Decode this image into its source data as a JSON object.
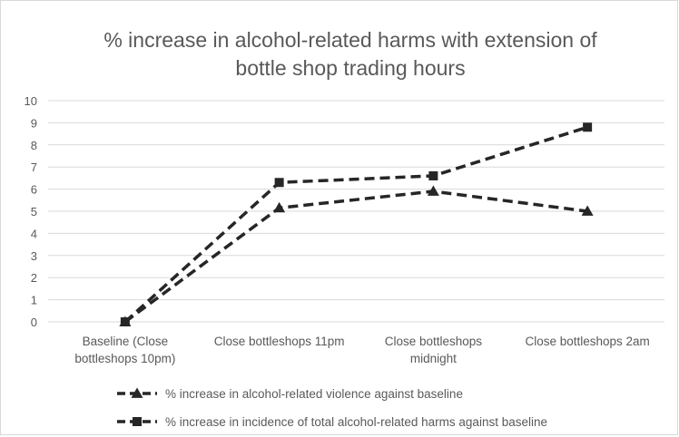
{
  "chart_data": {
    "type": "line",
    "title_lines": [
      "% increase in alcohol-related harms with extension of",
      "bottle shop trading hours"
    ],
    "categories": [
      [
        "Baseline (Close",
        "bottleshops 10pm)"
      ],
      [
        "Close bottleshops 11pm"
      ],
      [
        "Close bottleshops",
        "midnight"
      ],
      [
        "Close bottleshops 2am"
      ]
    ],
    "ylim": [
      0,
      10
    ],
    "yticks": [
      "0",
      "1",
      "2",
      "3",
      "4",
      "5",
      "6",
      "7",
      "8",
      "9",
      "10"
    ],
    "grid": true,
    "legend_position": "bottom",
    "series": [
      {
        "name": "% increase in alcohol-related violence against baseline",
        "marker": "triangle",
        "color": "#262626",
        "values": [
          0,
          5.15,
          5.9,
          5.0
        ]
      },
      {
        "name": "% increase in incidence of total alcohol-related harms against baseline",
        "marker": "square",
        "color": "#262626",
        "values": [
          0,
          6.3,
          6.6,
          8.8
        ]
      }
    ]
  }
}
